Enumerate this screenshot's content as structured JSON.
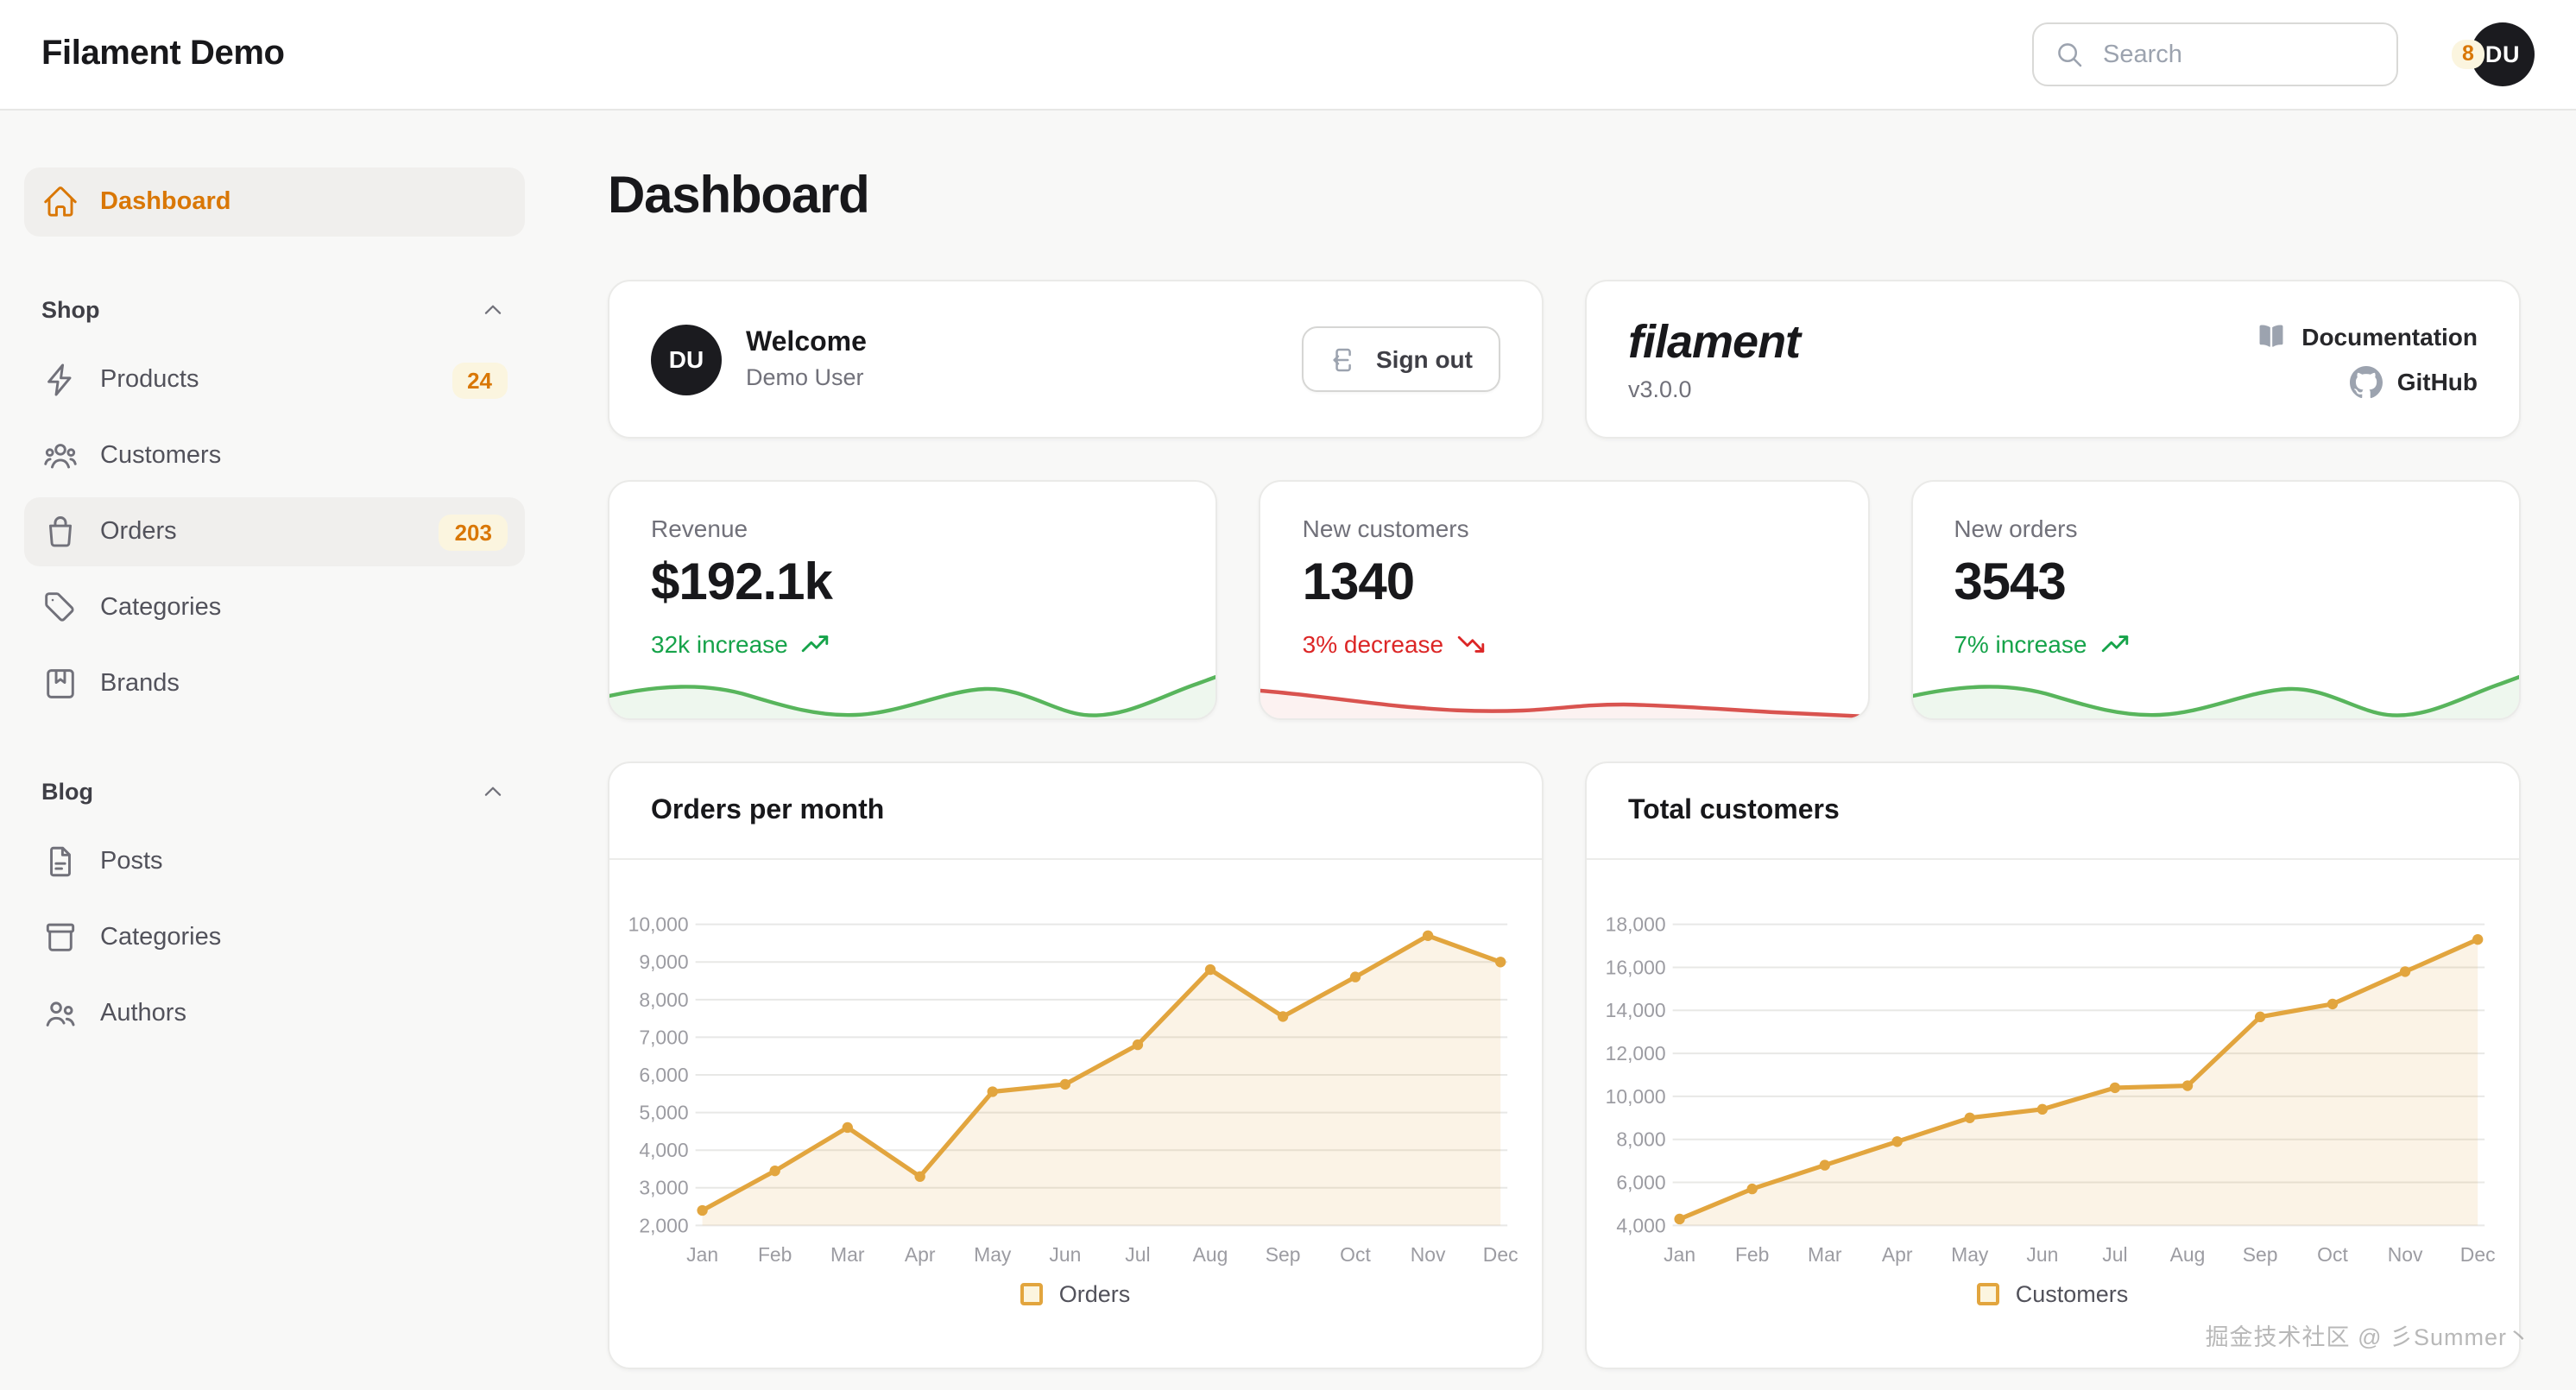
{
  "topbar": {
    "brand": "Filament Demo",
    "search_placeholder": "Search",
    "notification_count": "8",
    "avatar_initials": "DU"
  },
  "sidebar": {
    "dashboard": {
      "label": "Dashboard",
      "icon": "home"
    },
    "groups": [
      {
        "label": "Shop",
        "items": [
          {
            "label": "Products",
            "icon": "bolt",
            "badge": "24"
          },
          {
            "label": "Customers",
            "icon": "user-group"
          },
          {
            "label": "Orders",
            "icon": "shopping-bag",
            "badge": "203",
            "highlighted": true
          },
          {
            "label": "Categories",
            "icon": "tag"
          },
          {
            "label": "Brands",
            "icon": "bookmark-square"
          }
        ]
      },
      {
        "label": "Blog",
        "items": [
          {
            "label": "Posts",
            "icon": "document-text"
          },
          {
            "label": "Categories",
            "icon": "archive-box"
          },
          {
            "label": "Authors",
            "icon": "users"
          }
        ]
      }
    ]
  },
  "main": {
    "page_title": "Dashboard",
    "welcome": {
      "avatar_initials": "DU",
      "title": "Welcome",
      "subtitle": "Demo User",
      "signout_label": "Sign out"
    },
    "about": {
      "logo": "filament",
      "version": "v3.0.0",
      "links": [
        {
          "label": "Documentation",
          "icon": "book-open"
        },
        {
          "label": "GitHub",
          "icon": "github"
        }
      ]
    },
    "stats": [
      {
        "label": "Revenue",
        "value": "$192.1k",
        "delta": "32k increase",
        "trend": "up"
      },
      {
        "label": "New customers",
        "value": "1340",
        "delta": "3% decrease",
        "trend": "down"
      },
      {
        "label": "New orders",
        "value": "3543",
        "delta": "7% increase",
        "trend": "up"
      }
    ]
  },
  "chart_data": [
    {
      "type": "line",
      "title": "Orders per month",
      "legend": "Orders",
      "legend_position": "bottom",
      "grid": "horizontal",
      "categories": [
        "Jan",
        "Feb",
        "Mar",
        "Apr",
        "May",
        "Jun",
        "Jul",
        "Aug",
        "Sep",
        "Oct",
        "Nov",
        "Dec"
      ],
      "series": [
        {
          "name": "Orders",
          "values": [
            2400,
            3450,
            4600,
            3300,
            5550,
            5750,
            6800,
            8800,
            7550,
            8600,
            9700,
            9000
          ]
        }
      ],
      "ylim": [
        2000,
        10000
      ],
      "ytick_step": 1000
    },
    {
      "type": "line",
      "title": "Total customers",
      "legend": "Customers",
      "legend_position": "bottom",
      "grid": "horizontal",
      "categories": [
        "Jan",
        "Feb",
        "Mar",
        "Apr",
        "May",
        "Jun",
        "Jul",
        "Aug",
        "Sep",
        "Oct",
        "Nov",
        "Dec"
      ],
      "series": [
        {
          "name": "Customers",
          "values": [
            4300,
            5700,
            6800,
            7900,
            9000,
            9400,
            10400,
            10500,
            13700,
            14300,
            15800,
            17300
          ]
        }
      ],
      "ylim": [
        4000,
        18000
      ],
      "ytick_step": 2000
    }
  ],
  "watermark": "掘金技术社区 @ 彡Summer丶",
  "colors": {
    "accent": "#d97706",
    "badge_bg": "#fbf5df",
    "chart_line": "#e2a53e",
    "chart_fill": "rgba(226,165,62,0.13)",
    "grid_line": "#e8e8e6",
    "positive": "#16a34a",
    "negative": "#dc2626",
    "spark_up": "#58b55c",
    "spark_down": "#d9534f"
  }
}
